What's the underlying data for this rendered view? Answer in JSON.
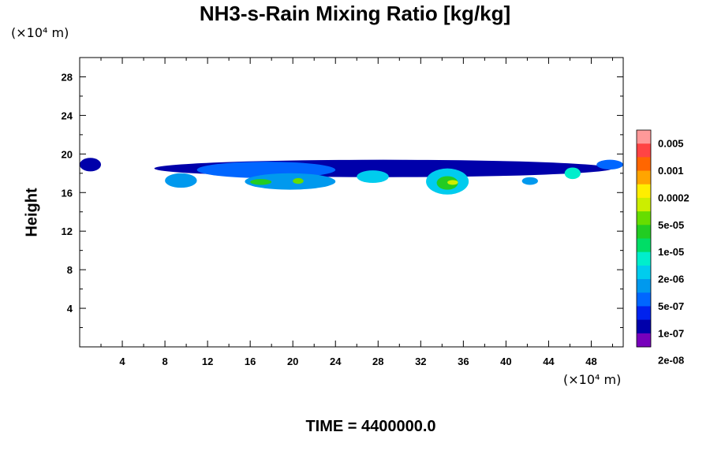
{
  "chart_data": {
    "type": "heatmap",
    "title": "NH3-s-Rain Mixing Ratio [kg/kg]",
    "xlabel": "",
    "ylabel": "Height",
    "x_unit": "(×10⁴ m)",
    "y_unit": "(×10⁴ m)",
    "xlim": [
      0,
      51
    ],
    "ylim": [
      0,
      30
    ],
    "x_ticks": [
      4,
      8,
      12,
      16,
      20,
      24,
      28,
      32,
      36,
      40,
      44,
      48
    ],
    "y_ticks": [
      4,
      8,
      12,
      16,
      20,
      24,
      28
    ],
    "colorbar": {
      "labels": [
        "0.005",
        "0.001",
        "0.0002",
        "5e-05",
        "1e-05",
        "2e-06",
        "5e-07",
        "1e-07",
        "2e-08"
      ],
      "colors": [
        "#ff9999",
        "#ff4444",
        "#ff6600",
        "#ffa500",
        "#ffee00",
        "#ccee00",
        "#66dd00",
        "#22cc22",
        "#00dd66",
        "#00eecc",
        "#00ccee",
        "#0099ee",
        "#0066ff",
        "#0022ee",
        "#0000aa",
        "#7700bb"
      ]
    },
    "features": [
      {
        "x": [
          0,
          2
        ],
        "y": [
          18.2,
          19.6
        ],
        "level": 1
      },
      {
        "x": [
          7,
          50
        ],
        "y": [
          17.6,
          19.4
        ],
        "level": 1
      },
      {
        "x": [
          8,
          11
        ],
        "y": [
          16.5,
          18.0
        ],
        "level": 4
      },
      {
        "x": [
          11,
          24
        ],
        "y": [
          17.5,
          19.2
        ],
        "level": 3
      },
      {
        "x": [
          15.5,
          24
        ],
        "y": [
          16.3,
          18.0
        ],
        "level": 4
      },
      {
        "x": [
          16,
          18
        ],
        "y": [
          16.8,
          17.4
        ],
        "level": 8
      },
      {
        "x": [
          20,
          21
        ],
        "y": [
          16.9,
          17.5
        ],
        "level": 9
      },
      {
        "x": [
          26,
          29
        ],
        "y": [
          17.0,
          18.3
        ],
        "level": 5
      },
      {
        "x": [
          32.5,
          36.5
        ],
        "y": [
          15.8,
          18.5
        ],
        "level": 5
      },
      {
        "x": [
          33.5,
          35.5
        ],
        "y": [
          16.3,
          17.7
        ],
        "level": 8
      },
      {
        "x": [
          34.5,
          35.5
        ],
        "y": [
          16.8,
          17.3
        ],
        "level": 10
      },
      {
        "x": [
          41.5,
          43
        ],
        "y": [
          16.8,
          17.6
        ],
        "level": 4
      },
      {
        "x": [
          45.5,
          47
        ],
        "y": [
          17.4,
          18.6
        ],
        "level": 6
      },
      {
        "x": [
          48.5,
          51
        ],
        "y": [
          18.4,
          19.4
        ],
        "level": 3
      }
    ]
  },
  "time_label": "TIME = 4400000.0"
}
